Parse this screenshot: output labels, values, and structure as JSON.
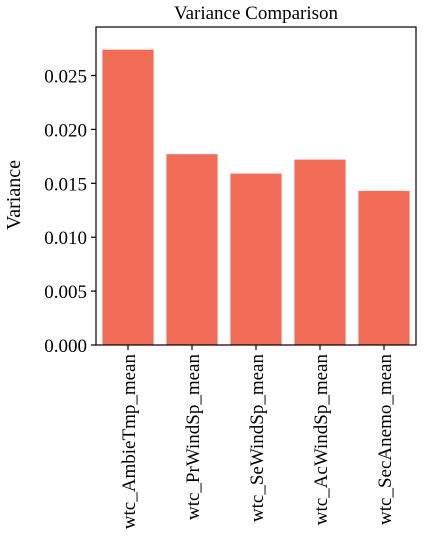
{
  "chart_data": {
    "type": "bar",
    "title": "Variance Comparison",
    "xlabel": "",
    "ylabel": "Variance",
    "categories": [
      "wtc_AmbieTmp_mean",
      "wtc_PrWindSp_mean",
      "wtc_SeWindSp_mean",
      "wtc_AcWindSp_mean",
      "wtc_SecAnemo_mean"
    ],
    "values": [
      0.0274,
      0.0177,
      0.0159,
      0.0172,
      0.0143
    ],
    "ylim": [
      0,
      0.0295
    ],
    "yticks": [
      0.0,
      0.005,
      0.01,
      0.015,
      0.02,
      0.025
    ],
    "ytick_labels": [
      "0.000",
      "0.005",
      "0.010",
      "0.015",
      "0.020",
      "0.025"
    ],
    "grid": false,
    "bar_color": "#f26b57"
  }
}
